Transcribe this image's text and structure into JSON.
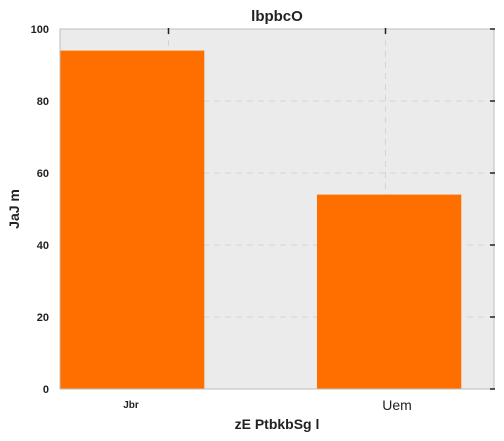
{
  "chart_data": {
    "type": "bar",
    "title": "lbpbcO",
    "xlabel": "zE PtbkbSg l",
    "ylabel": "JaJ m",
    "categories": [
      "Jbr",
      "Uem"
    ],
    "values": [
      94,
      54
    ],
    "ylim": [
      0,
      100
    ],
    "yticks": [
      "0",
      "20",
      "40",
      "60",
      "80",
      "100"
    ],
    "grid": true,
    "bar_color": "#ff6f00",
    "background_color": "#ebebeb",
    "grid_color": "#d4d4d4"
  }
}
